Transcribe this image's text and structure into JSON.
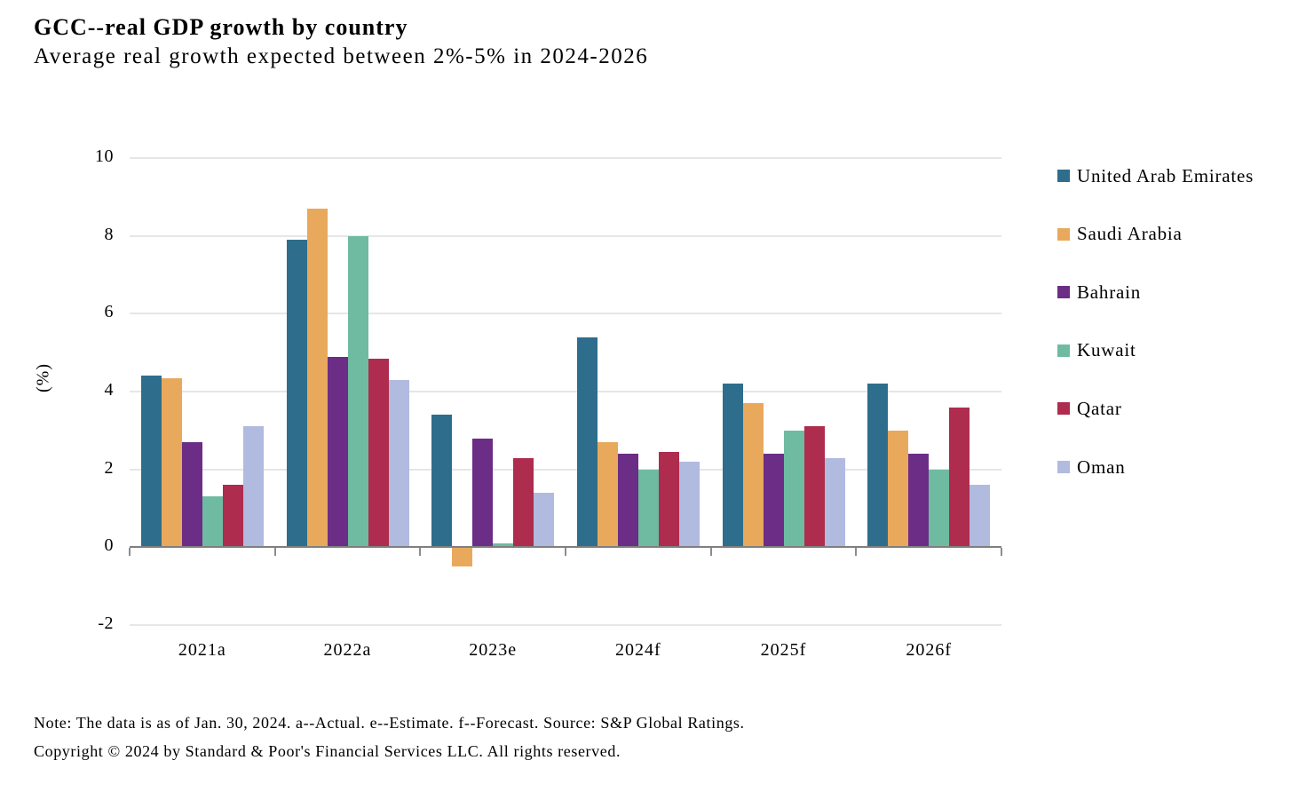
{
  "header": {
    "title": "GCC--real GDP growth by country",
    "subtitle": "Average real growth expected between 2%-5% in 2024-2026"
  },
  "footer": {
    "note": "Note: The data is as of Jan. 30, 2024. a--Actual. e--Estimate. f--Forecast. Source: S&P Global Ratings.",
    "copyright": "Copyright © 2024 by Standard & Poor's Financial Services LLC. All rights reserved."
  },
  "chart_data": {
    "type": "bar",
    "title": "GCC--real GDP growth by country",
    "subtitle": "Average real growth expected between 2%-5% in 2024-2026",
    "xlabel": "",
    "ylabel": "(%)",
    "ylim": [
      -2,
      10
    ],
    "yticks": [
      10,
      8,
      6,
      4,
      2,
      0,
      -2
    ],
    "grid": true,
    "legend_position": "right",
    "categories": [
      "2021a",
      "2022a",
      "2023e",
      "2024f",
      "2025f",
      "2026f"
    ],
    "series": [
      {
        "name": "United Arab Emirates",
        "color": "#2E6E8C",
        "values": [
          4.4,
          7.9,
          3.4,
          5.4,
          4.2,
          4.2
        ]
      },
      {
        "name": "Saudi Arabia",
        "color": "#E8A95D",
        "values": [
          4.35,
          8.7,
          -0.5,
          2.7,
          3.7,
          3.0
        ]
      },
      {
        "name": "Bahrain",
        "color": "#6B2D85",
        "values": [
          2.7,
          4.9,
          2.8,
          2.4,
          2.4,
          2.4
        ]
      },
      {
        "name": "Kuwait",
        "color": "#6FBBA1",
        "values": [
          1.3,
          8.0,
          0.1,
          2.0,
          3.0,
          2.0
        ]
      },
      {
        "name": "Qatar",
        "color": "#AE2C4E",
        "values": [
          1.6,
          4.85,
          2.3,
          2.45,
          3.1,
          3.6
        ]
      },
      {
        "name": "Oman",
        "color": "#B1BADF",
        "values": [
          3.1,
          4.3,
          1.4,
          2.2,
          2.3,
          1.6
        ]
      }
    ],
    "colors": {
      "gridline": "#E6E6E6",
      "axis_line": "#7F7F7F",
      "tick_mark": "#8C8C8C",
      "background": "#FFFFFF",
      "text": "#000000"
    }
  }
}
